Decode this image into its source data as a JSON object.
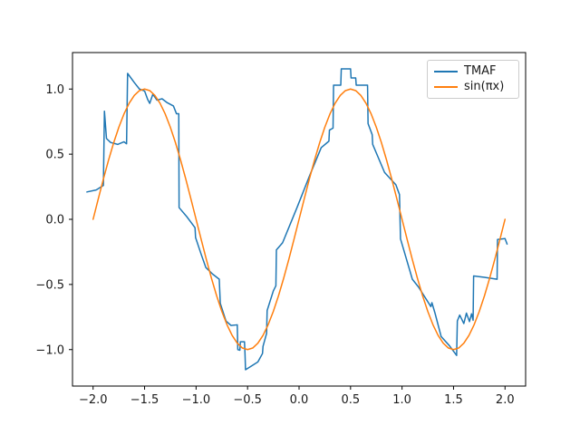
{
  "chart_data": {
    "type": "line",
    "title": "",
    "xlabel": "",
    "ylabel": "",
    "xlim": [
      -2.2,
      2.2
    ],
    "ylim": [
      -1.28,
      1.28
    ],
    "grid": false,
    "legend": {
      "position": "upper right",
      "entries": [
        "TMAF",
        "sin(πx)"
      ]
    },
    "x_ticks": {
      "values": [
        -2.0,
        -1.5,
        -1.0,
        -0.5,
        0.0,
        0.5,
        1.0,
        1.5,
        2.0
      ],
      "labels": [
        "−2.0",
        "−1.5",
        "−1.0",
        "−0.5",
        "0.0",
        "0.5",
        "1.0",
        "1.5",
        "2.0"
      ]
    },
    "y_ticks": {
      "values": [
        -1.0,
        -0.5,
        0.0,
        0.5,
        1.0
      ],
      "labels": [
        "−1.0",
        "−0.5",
        "0.0",
        "0.5",
        "1.0"
      ]
    },
    "series": [
      {
        "name": "TMAF",
        "color": "#1f77b4",
        "line_width": 1.5,
        "points": [
          [
            -2.06,
            0.21
          ],
          [
            -1.97,
            0.225
          ],
          [
            -1.9,
            0.26
          ],
          [
            -1.89,
            0.83
          ],
          [
            -1.87,
            0.62
          ],
          [
            -1.83,
            0.59
          ],
          [
            -1.76,
            0.575
          ],
          [
            -1.7,
            0.595
          ],
          [
            -1.675,
            0.58
          ],
          [
            -1.665,
            1.12
          ],
          [
            -1.6,
            1.05
          ],
          [
            -1.55,
            1.0
          ],
          [
            -1.5,
            0.985
          ],
          [
            -1.47,
            0.92
          ],
          [
            -1.45,
            0.89
          ],
          [
            -1.42,
            0.96
          ],
          [
            -1.38,
            0.915
          ],
          [
            -1.33,
            0.925
          ],
          [
            -1.28,
            0.895
          ],
          [
            -1.22,
            0.87
          ],
          [
            -1.19,
            0.81
          ],
          [
            -1.168,
            0.81
          ],
          [
            -1.165,
            0.09
          ],
          [
            -1.09,
            0.02
          ],
          [
            -1.01,
            -0.065
          ],
          [
            -1.005,
            -0.14
          ],
          [
            -0.95,
            -0.27
          ],
          [
            -0.905,
            -0.37
          ],
          [
            -0.84,
            -0.42
          ],
          [
            -0.775,
            -0.46
          ],
          [
            -0.765,
            -0.645
          ],
          [
            -0.71,
            -0.78
          ],
          [
            -0.66,
            -0.815
          ],
          [
            -0.6,
            -0.81
          ],
          [
            -0.595,
            -1.0
          ],
          [
            -0.575,
            -1.005
          ],
          [
            -0.57,
            -0.94
          ],
          [
            -0.53,
            -0.94
          ],
          [
            -0.525,
            -1.03
          ],
          [
            -0.52,
            -1.155
          ],
          [
            -0.45,
            -1.12
          ],
          [
            -0.4,
            -1.095
          ],
          [
            -0.355,
            -1.03
          ],
          [
            -0.35,
            -0.975
          ],
          [
            -0.315,
            -0.875
          ],
          [
            -0.31,
            -0.7
          ],
          [
            -0.25,
            -0.55
          ],
          [
            -0.225,
            -0.51
          ],
          [
            -0.22,
            -0.235
          ],
          [
            -0.16,
            -0.18
          ],
          [
            -0.02,
            0.09
          ],
          [
            0.1,
            0.33
          ],
          [
            0.215,
            0.55
          ],
          [
            0.29,
            0.6
          ],
          [
            0.295,
            0.685
          ],
          [
            0.33,
            0.7
          ],
          [
            0.335,
            1.03
          ],
          [
            0.405,
            1.03
          ],
          [
            0.41,
            1.155
          ],
          [
            0.5,
            1.155
          ],
          [
            0.505,
            1.085
          ],
          [
            0.55,
            1.085
          ],
          [
            0.555,
            1.03
          ],
          [
            0.665,
            1.03
          ],
          [
            0.67,
            0.735
          ],
          [
            0.71,
            0.65
          ],
          [
            0.715,
            0.575
          ],
          [
            0.83,
            0.36
          ],
          [
            0.94,
            0.265
          ],
          [
            0.975,
            0.19
          ],
          [
            0.985,
            -0.15
          ],
          [
            1.1,
            -0.46
          ],
          [
            1.16,
            -0.52
          ],
          [
            1.28,
            -0.67
          ],
          [
            1.29,
            -0.64
          ],
          [
            1.32,
            -0.72
          ],
          [
            1.38,
            -0.9
          ],
          [
            1.46,
            -0.97
          ],
          [
            1.53,
            -1.045
          ],
          [
            1.537,
            -0.78
          ],
          [
            1.56,
            -0.735
          ],
          [
            1.6,
            -0.8
          ],
          [
            1.625,
            -0.72
          ],
          [
            1.655,
            -0.785
          ],
          [
            1.675,
            -0.725
          ],
          [
            1.69,
            -0.775
          ],
          [
            1.695,
            -0.435
          ],
          [
            1.8,
            -0.445
          ],
          [
            1.923,
            -0.46
          ],
          [
            1.927,
            -0.155
          ],
          [
            2.0,
            -0.148
          ],
          [
            2.02,
            -0.19
          ]
        ]
      },
      {
        "name": "sin(πx)",
        "color": "#ff7f0e",
        "line_width": 1.5,
        "x_start": -2.0,
        "x_step": 0.05,
        "values": [
          0.0,
          0.156,
          0.309,
          0.454,
          0.588,
          0.707,
          0.809,
          0.891,
          0.951,
          0.988,
          1.0,
          0.988,
          0.951,
          0.891,
          0.809,
          0.707,
          0.588,
          0.454,
          0.309,
          0.156,
          0.0,
          -0.156,
          -0.309,
          -0.454,
          -0.588,
          -0.707,
          -0.809,
          -0.891,
          -0.951,
          -0.988,
          -1.0,
          -0.988,
          -0.951,
          -0.891,
          -0.809,
          -0.707,
          -0.588,
          -0.454,
          -0.309,
          -0.156,
          0.0,
          0.156,
          0.309,
          0.454,
          0.588,
          0.707,
          0.809,
          0.891,
          0.951,
          0.988,
          1.0,
          0.988,
          0.951,
          0.891,
          0.809,
          0.707,
          0.588,
          0.454,
          0.309,
          0.156,
          0.0,
          -0.156,
          -0.309,
          -0.454,
          -0.588,
          -0.707,
          -0.809,
          -0.891,
          -0.951,
          -0.988,
          -1.0,
          -0.988,
          -0.951,
          -0.891,
          -0.809,
          -0.707,
          -0.588,
          -0.454,
          -0.309,
          -0.156,
          0.0
        ]
      }
    ]
  },
  "colors": {
    "background": "#ffffff",
    "axes_spine": "#000000",
    "tick_text": "#1a1a1a",
    "legend_border": "#cccccc"
  }
}
